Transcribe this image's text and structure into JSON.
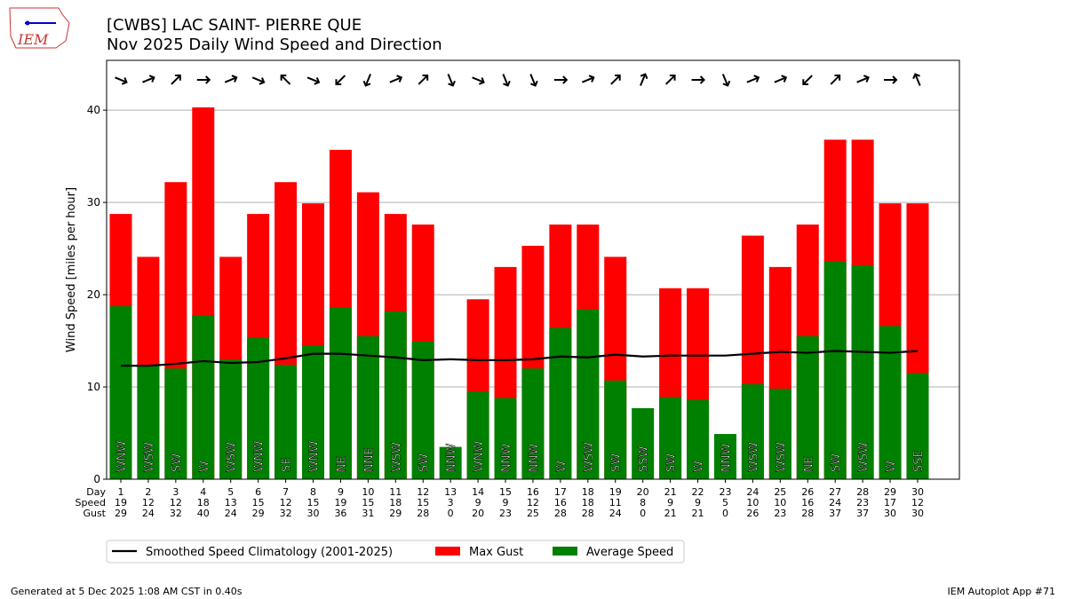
{
  "logo_text": "IEM",
  "footer_left": "Generated at 5 Dec 2025 1:08 AM CST in 0.40s",
  "footer_right": "IEM Autoplot App #71",
  "chart_data": {
    "type": "bar",
    "title": "[CWBS] LAC SAINT- PIERRE  QUE",
    "subtitle": "Nov 2025 Daily Wind Speed and Direction",
    "ylabel": "Wind Speed [miles per hour]",
    "ylim": [
      0,
      45.4
    ],
    "yticks": [
      0,
      10,
      20,
      30,
      40
    ],
    "grid": true,
    "row_labels": [
      "Day",
      "Speed",
      "Gust"
    ],
    "days": [
      1,
      2,
      3,
      4,
      5,
      6,
      7,
      8,
      9,
      10,
      11,
      12,
      13,
      14,
      15,
      16,
      17,
      18,
      19,
      20,
      21,
      22,
      23,
      24,
      25,
      26,
      27,
      28,
      29,
      30
    ],
    "speed_labels": [
      19,
      12,
      12,
      18,
      13,
      15,
      12,
      15,
      19,
      15,
      18,
      15,
      3,
      9,
      9,
      12,
      16,
      18,
      11,
      8,
      9,
      9,
      5,
      10,
      10,
      16,
      24,
      23,
      17,
      12
    ],
    "gust_labels": [
      29,
      24,
      32,
      40,
      24,
      29,
      32,
      30,
      36,
      31,
      29,
      28,
      0,
      20,
      23,
      25,
      28,
      28,
      24,
      0,
      21,
      21,
      0,
      26,
      23,
      28,
      37,
      37,
      30,
      30
    ],
    "directions": [
      "WNW",
      "WSW",
      "SW",
      "W",
      "WSW",
      "WNW",
      "SE",
      "WNW",
      "NE",
      "NNE",
      "WSW",
      "SW",
      "NNW",
      "WNW",
      "NNW",
      "NNW",
      "W",
      "WSW",
      "SW",
      "SSW",
      "SW",
      "W",
      "NNW",
      "WSW",
      "WSW",
      "NE",
      "SW",
      "WSW",
      "W",
      "SSE"
    ],
    "series": [
      {
        "name": "Max Gust",
        "color": "#ff0000",
        "values": [
          28.75,
          24.1,
          32.2,
          40.3,
          24.1,
          28.75,
          32.2,
          29.9,
          35.7,
          31.1,
          28.75,
          27.6,
          0,
          19.5,
          23.0,
          25.3,
          27.6,
          27.6,
          24.1,
          0,
          20.7,
          20.7,
          0,
          26.4,
          23.0,
          27.6,
          36.8,
          36.8,
          29.9,
          29.9
        ]
      },
      {
        "name": "Average Speed",
        "color": "#008000",
        "values": [
          18.75,
          12.3,
          12.0,
          17.8,
          13.0,
          15.3,
          12.4,
          14.5,
          18.6,
          15.5,
          18.2,
          14.9,
          3.5,
          9.5,
          8.8,
          12.0,
          16.4,
          18.4,
          10.7,
          7.7,
          8.9,
          8.6,
          4.9,
          10.3,
          9.8,
          15.5,
          23.6,
          23.2,
          16.6,
          11.5
        ]
      },
      {
        "name": "Smoothed Speed Climatology (2001-2025)",
        "color": "#000000",
        "type": "line",
        "values": [
          12.3,
          12.3,
          12.5,
          12.8,
          12.6,
          12.7,
          13.1,
          13.6,
          13.6,
          13.4,
          13.2,
          12.9,
          13.0,
          12.9,
          12.9,
          13.0,
          13.3,
          13.2,
          13.5,
          13.3,
          13.4,
          13.4,
          13.4,
          13.6,
          13.8,
          13.7,
          13.9,
          13.8,
          13.7,
          13.9
        ]
      }
    ],
    "legend_position": "bottom-left"
  }
}
